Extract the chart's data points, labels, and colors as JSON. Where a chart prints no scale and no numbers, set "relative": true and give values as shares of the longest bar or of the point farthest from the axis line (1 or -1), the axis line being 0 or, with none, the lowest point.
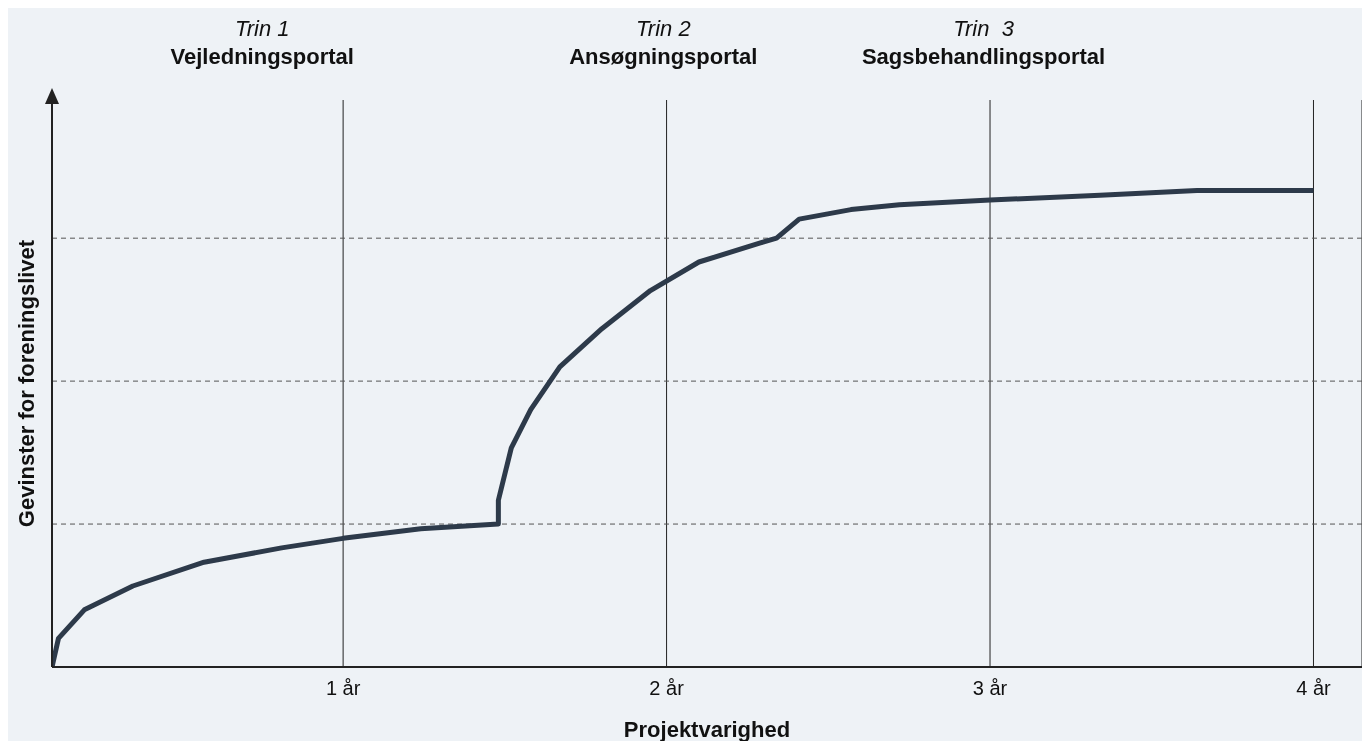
{
  "chart_data": {
    "type": "line",
    "relative": true,
    "xlabel": "Projektvarighed",
    "ylabel": "Gevinster for foreningslivet",
    "annotations": [
      "Trin 1",
      "Vejledningsportal",
      "Trin 2",
      "Ansøgningsportal",
      "Trin  3",
      "Sagsbehandlingsportal"
    ],
    "xlim": [
      0.1,
      4.15
    ],
    "xticks": [
      {
        "value": 1,
        "label": "1 år"
      },
      {
        "value": 2,
        "label": "2 år"
      },
      {
        "value": 3,
        "label": "3 år"
      },
      {
        "value": 4,
        "label": "4 år"
      }
    ],
    "grid": "x",
    "marker": "none",
    "line_style": "solid",
    "ref_lines": [
      {
        "axis": "y",
        "value": 0.3,
        "line_style": "dashed",
        "color": "#555555"
      },
      {
        "axis": "y",
        "value": 0.6,
        "line_style": "dashed",
        "color": "#555555"
      },
      {
        "axis": "y",
        "value": 0.9,
        "line_style": "dashed",
        "color": "#555555"
      }
    ],
    "series": [
      {
        "color": "#2d3a4a",
        "x": [
          0.1,
          0.12,
          0.2,
          0.35,
          0.57,
          0.81,
          1.0,
          1.24,
          1.48,
          1.48,
          1.52,
          1.58,
          1.67,
          1.8,
          1.95,
          2.1,
          2.29,
          2.34,
          2.41,
          2.57,
          2.72,
          3.0,
          3.34,
          3.64,
          4.0
        ],
        "values": [
          0,
          0.06,
          0.12,
          0.17,
          0.22,
          0.25,
          0.27,
          0.29,
          0.3,
          0.35,
          0.46,
          0.54,
          0.63,
          0.71,
          0.79,
          0.85,
          0.89,
          0.9,
          0.94,
          0.96,
          0.97,
          0.98,
          0.99,
          1.0,
          1.0
        ]
      }
    ]
  }
}
